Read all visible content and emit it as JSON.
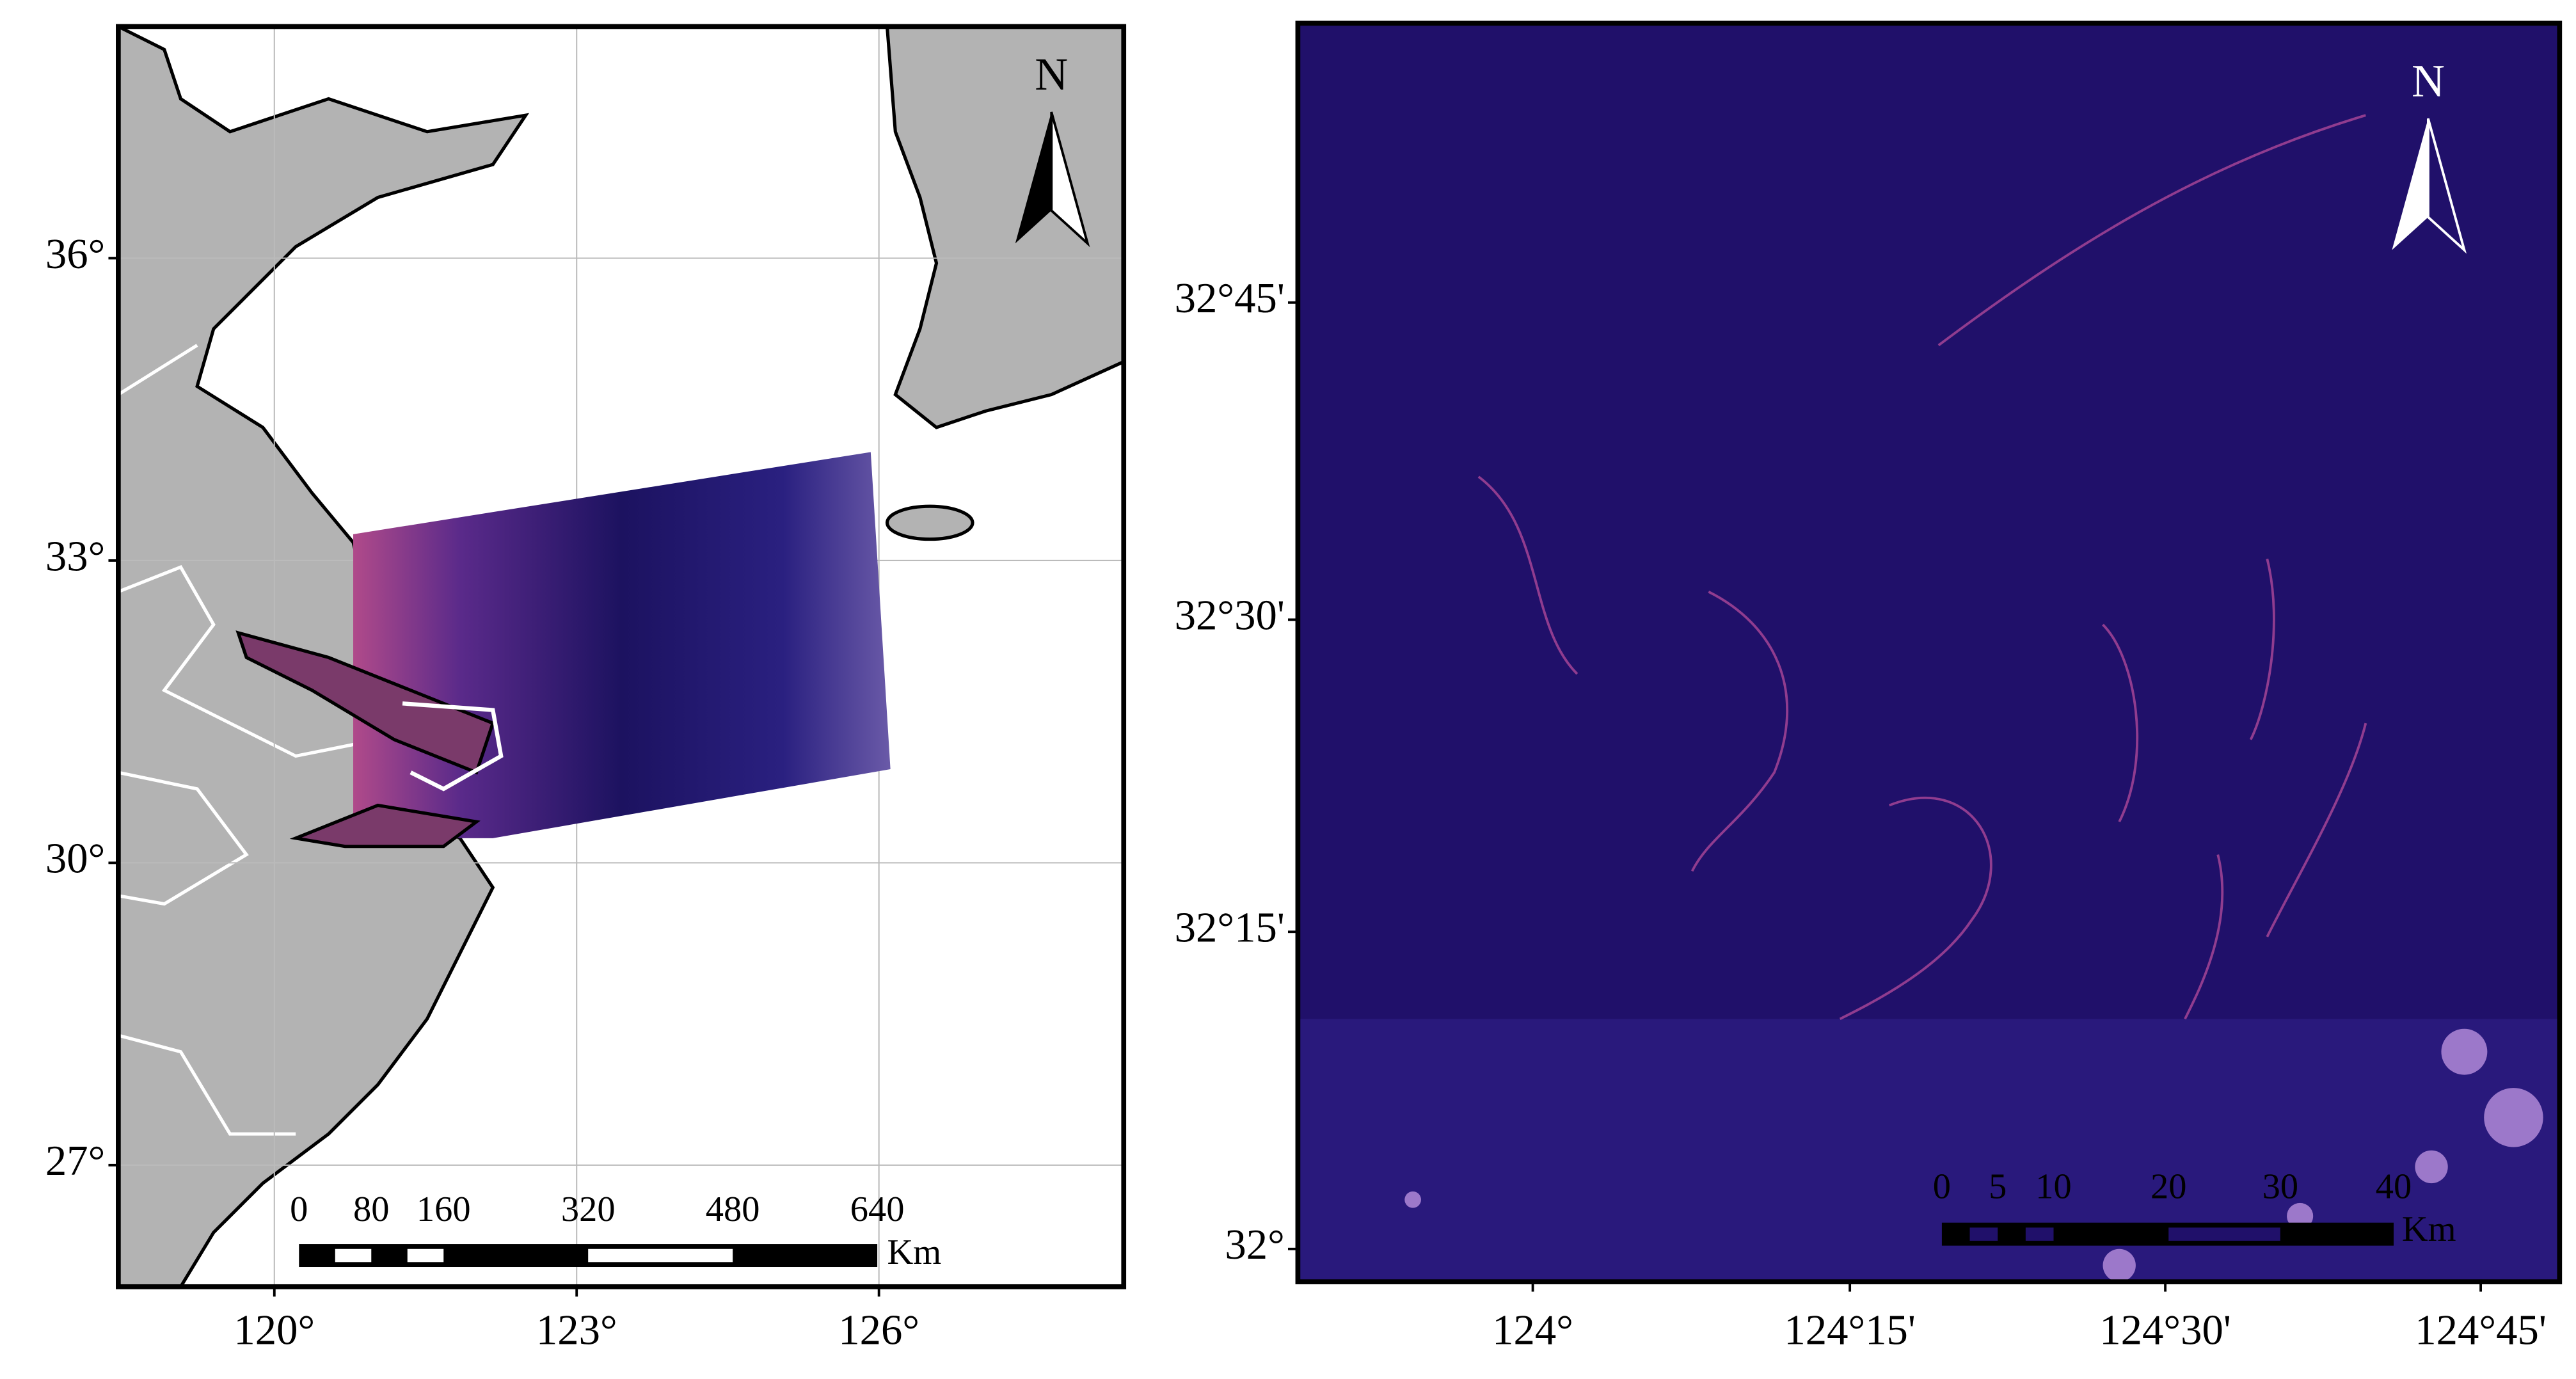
{
  "maps": [
    {
      "yticks": [
        "36°",
        "33°",
        "30°",
        "27°"
      ],
      "xticks": [
        "120°",
        "123°",
        "126°"
      ],
      "north": "N",
      "scale_labels": [
        "0",
        "80",
        "160",
        "320",
        "480",
        "640"
      ],
      "scale_unit": "Km"
    },
    {
      "yticks": [
        "32°45'",
        "32°30'",
        "32°15'",
        "32°"
      ],
      "xticks": [
        "124°",
        "124°15'",
        "124°30'",
        "124°45'"
      ],
      "north": "N",
      "scale_labels": [
        "0",
        "5",
        "10",
        "20",
        "30",
        "40"
      ],
      "scale_unit": "Km"
    }
  ]
}
